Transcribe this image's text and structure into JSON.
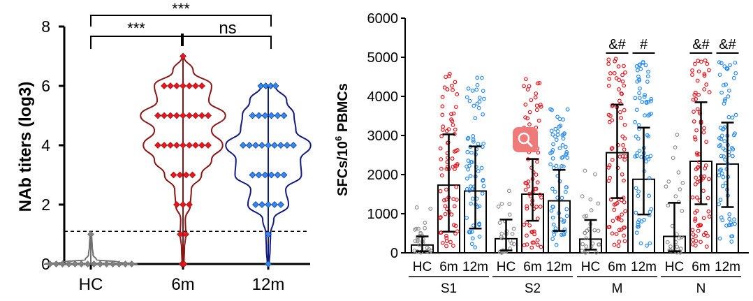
{
  "chart_data": [
    {
      "type": "violin",
      "ylabel": "NAb titers (log3)",
      "ylim": [
        0,
        8
      ],
      "yticks": [
        "0",
        "2",
        "4",
        "6",
        "8"
      ],
      "threshold": 1.1,
      "categories": [
        "HC",
        "6m",
        "12m"
      ],
      "colors": [
        "#808080",
        "#e8141e",
        "#2a8cf0"
      ],
      "outline_colors": [
        "#707070",
        "#8b1414",
        "#101a80"
      ],
      "series": [
        {
          "name": "HC",
          "max": 1,
          "levels": [
            [
              0,
              14
            ],
            [
              1,
              1
            ]
          ],
          "profile": [
            [
              0,
              1.0
            ],
            [
              0.06,
              0.6
            ],
            [
              0.15,
              0.12
            ],
            [
              0.3,
              0.05
            ],
            [
              0.6,
              0.03
            ],
            [
              0.9,
              0.02
            ],
            [
              1.0,
              0.0
            ]
          ]
        },
        {
          "name": "6m",
          "max": 7,
          "levels": [
            [
              0,
              2
            ],
            [
              1,
              2
            ],
            [
              2,
              3
            ],
            [
              3,
              4
            ],
            [
              4,
              9
            ],
            [
              5,
              9
            ],
            [
              6,
              7
            ],
            [
              7,
              1
            ]
          ],
          "profile": [
            [
              0,
              0.02
            ],
            [
              0.5,
              0.03
            ],
            [
              1,
              0.06
            ],
            [
              1.5,
              0.05
            ],
            [
              2,
              0.16
            ],
            [
              2.5,
              0.18
            ],
            [
              3,
              0.4
            ],
            [
              3.5,
              0.62
            ],
            [
              4,
              0.86
            ],
            [
              4.5,
              0.62
            ],
            [
              5,
              0.92
            ],
            [
              5.5,
              0.56
            ],
            [
              6,
              0.62
            ],
            [
              6.5,
              0.22
            ],
            [
              7,
              0.02
            ]
          ]
        },
        {
          "name": "12m",
          "max": 6,
          "levels": [
            [
              0,
              1
            ],
            [
              1,
              1
            ],
            [
              2,
              5
            ],
            [
              3,
              6
            ],
            [
              4,
              9
            ],
            [
              5,
              6
            ],
            [
              6,
              4
            ]
          ],
          "profile": [
            [
              0,
              0.02
            ],
            [
              0.5,
              0.04
            ],
            [
              1,
              0.05
            ],
            [
              1.5,
              0.12
            ],
            [
              2,
              0.44
            ],
            [
              2.5,
              0.38
            ],
            [
              3,
              0.72
            ],
            [
              3.5,
              0.7
            ],
            [
              4,
              0.92
            ],
            [
              4.5,
              0.6
            ],
            [
              5,
              0.56
            ],
            [
              5.5,
              0.4
            ],
            [
              6,
              0.16
            ]
          ]
        }
      ],
      "annotations": [
        {
          "from": "HC",
          "to": "12m",
          "text": "***",
          "level": "top"
        },
        {
          "from": "HC",
          "to": "6m",
          "text": "***",
          "level": "middle"
        },
        {
          "from": "6m",
          "to": "12m",
          "text": "ns",
          "level": "middle"
        }
      ]
    },
    {
      "type": "bar",
      "ylabel_main": "SFCs/10",
      "ylabel_sup": "6",
      "ylabel_tail": " PBMCs",
      "ylim": [
        0,
        6000
      ],
      "yticks": [
        "0",
        "1000",
        "2000",
        "3000",
        "4000",
        "5000",
        "6000"
      ],
      "categories": [
        "HC",
        "6m",
        "12m"
      ],
      "colors": [
        "#909090",
        "#e8141e",
        "#2a8cf0"
      ],
      "groups": [
        {
          "name": "S1",
          "values": [
            200,
            1730,
            1580
          ],
          "err": [
            [
              40,
              420
            ],
            [
              540,
              3030
            ],
            [
              620,
              2720
            ]
          ],
          "labels": [
            "",
            "",
            ""
          ],
          "point_n": [
            30,
            75,
            70
          ],
          "point_max": [
            1260,
            4700,
            4650
          ]
        },
        {
          "name": "S2",
          "values": [
            360,
            1500,
            1330
          ],
          "err": [
            [
              60,
              850
            ],
            [
              820,
              2400
            ],
            [
              560,
              2120
            ]
          ],
          "labels": [
            "",
            "",
            ""
          ],
          "point_n": [
            28,
            75,
            70
          ],
          "point_max": [
            1950,
            4480,
            3750
          ]
        },
        {
          "name": "M",
          "values": [
            350,
            2560,
            1880
          ],
          "err": [
            [
              80,
              840
            ],
            [
              1400,
              3790
            ],
            [
              980,
              3200
            ]
          ],
          "labels": [
            "",
            "&#",
            "#"
          ],
          "point_n": [
            26,
            80,
            72
          ],
          "point_max": [
            2200,
            5000,
            4950
          ]
        },
        {
          "name": "N",
          "values": [
            420,
            2340,
            2270
          ],
          "err": [
            [
              40,
              1280
            ],
            [
              1240,
              3850
            ],
            [
              1170,
              3330
            ]
          ],
          "labels": [
            "",
            "&#",
            "&#"
          ],
          "point_n": [
            28,
            80,
            75
          ],
          "point_max": [
            3100,
            4980,
            4900
          ]
        }
      ]
    }
  ]
}
